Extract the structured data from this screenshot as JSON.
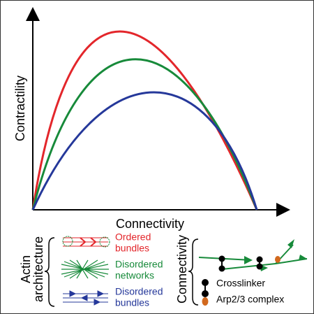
{
  "plot": {
    "x_label": "Connectivity",
    "y_label": "Contractility"
  },
  "actin_legend": {
    "title": [
      "Actin",
      "architecture"
    ],
    "items": [
      {
        "label": [
          "Ordered",
          "bundles"
        ]
      },
      {
        "label": [
          "Disordered",
          "networks"
        ]
      },
      {
        "label": [
          "Disordered",
          "bundles"
        ]
      }
    ]
  },
  "connectivity_legend": {
    "title": "Connectivity",
    "items": [
      "Crosslinker",
      "Arp2/3 complex"
    ]
  }
}
